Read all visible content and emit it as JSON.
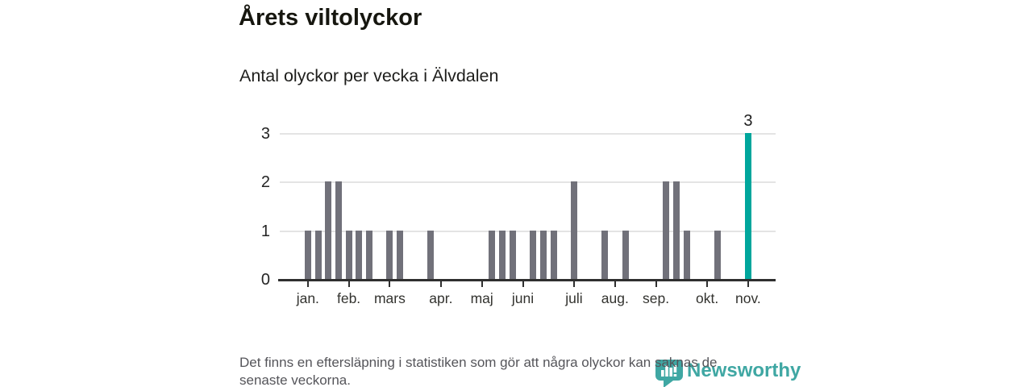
{
  "header": {
    "title": "Årets viltolyckor",
    "subtitle": "Antal olyckor per vecka i Älvdalen"
  },
  "chart_data": {
    "type": "bar",
    "title": "Årets viltolyckor",
    "subtitle": "Antal olyckor per vecka i Älvdalen",
    "x_unit": "week",
    "week_start": 1,
    "week_end": 44,
    "values": [
      1,
      1,
      2,
      2,
      1,
      1,
      1,
      0,
      1,
      1,
      0,
      0,
      1,
      0,
      0,
      0,
      0,
      0,
      1,
      1,
      1,
      0,
      1,
      1,
      1,
      0,
      2,
      0,
      0,
      1,
      0,
      1,
      0,
      0,
      0,
      2,
      2,
      1,
      0,
      0,
      1,
      0,
      0,
      3
    ],
    "month_ticks": [
      {
        "week": 1,
        "label": "jan."
      },
      {
        "week": 5,
        "label": "feb."
      },
      {
        "week": 9,
        "label": "mars"
      },
      {
        "week": 14,
        "label": "apr."
      },
      {
        "week": 18,
        "label": "maj"
      },
      {
        "week": 22,
        "label": "juni"
      },
      {
        "week": 27,
        "label": "juli"
      },
      {
        "week": 31,
        "label": "aug."
      },
      {
        "week": 35,
        "label": "sep."
      },
      {
        "week": 40,
        "label": "okt."
      },
      {
        "week": 44,
        "label": "nov."
      }
    ],
    "yticks": [
      0,
      1,
      2,
      3
    ],
    "ylim": [
      0,
      3
    ],
    "grid": "horizontal",
    "legend": "none",
    "highlight": {
      "week": 44,
      "value": 3,
      "label": "3"
    },
    "colors": {
      "bar": "#71717a",
      "highlight_bar": "#00a69c"
    }
  },
  "footer": {
    "disclaimer_lines": [
      "Det finns en eftersläpning i statistiken som gör att några olyckor kan saknas de",
      "senaste veckorna."
    ]
  },
  "branding": {
    "name": "Newsworthy",
    "color": "#3fa7a3",
    "icon": "newsworthy-bar-chart-bubble-icon"
  }
}
